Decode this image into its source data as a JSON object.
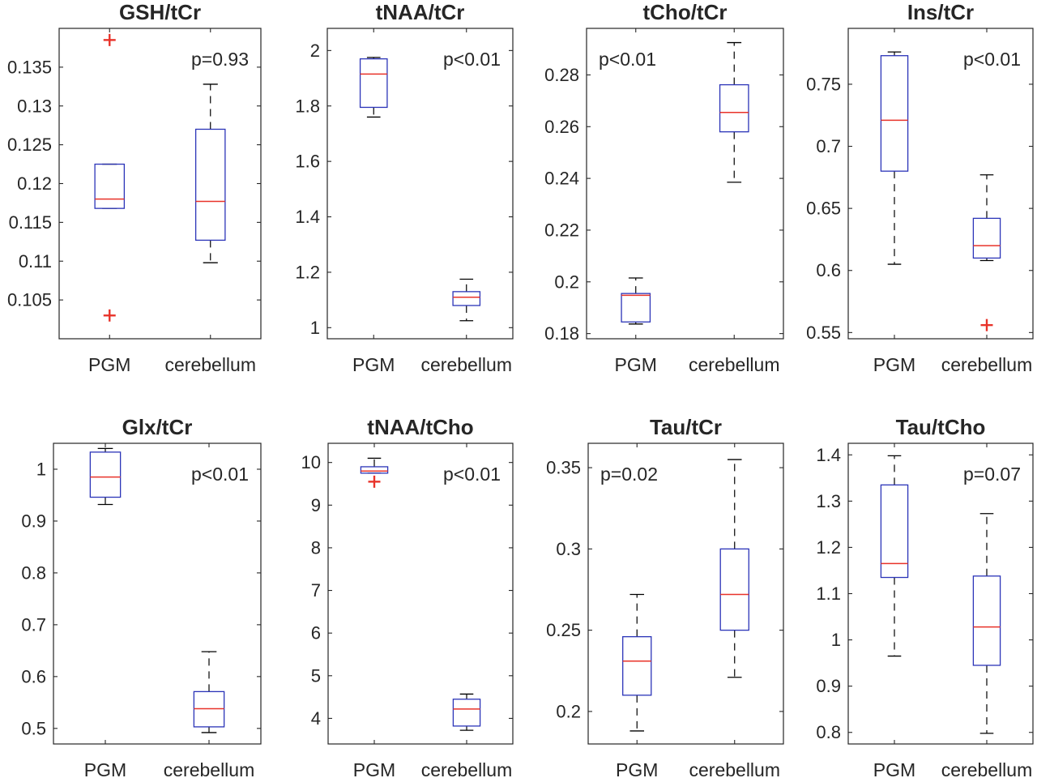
{
  "chart_data": [
    {
      "type": "box",
      "title": "GSH/tCr",
      "categories": [
        "PGM",
        "cerebellum"
      ],
      "ylim": [
        0.1,
        0.14
      ],
      "yticks": [
        "0.105",
        "0.11",
        "0.115",
        "0.12",
        "0.125",
        "0.13",
        "0.135"
      ],
      "yticks_values": [
        0.105,
        0.11,
        0.115,
        0.12,
        0.125,
        0.13,
        0.135
      ],
      "boxes": [
        {
          "category": "PGM",
          "whisker_low": 0.1168,
          "q1": 0.1168,
          "median": 0.118,
          "q3": 0.1225,
          "whisker_high": 0.1225,
          "outliers": [
            0.1385,
            0.103
          ]
        },
        {
          "category": "cerebellum",
          "whisker_low": 0.1098,
          "q1": 0.1127,
          "median": 0.1177,
          "q3": 0.127,
          "whisker_high": 0.1328,
          "outliers": []
        }
      ],
      "annotation": "p=0.93",
      "annotation_pos": "top-right"
    },
    {
      "type": "box",
      "title": "tNAA/tCr",
      "categories": [
        "PGM",
        "cerebellum"
      ],
      "ylim": [
        0.96,
        2.08
      ],
      "yticks": [
        "1",
        "1.2",
        "1.4",
        "1.6",
        "1.8",
        "2"
      ],
      "yticks_values": [
        1,
        1.2,
        1.4,
        1.6,
        1.8,
        2
      ],
      "boxes": [
        {
          "category": "PGM",
          "whisker_low": 1.76,
          "q1": 1.795,
          "median": 1.915,
          "q3": 1.97,
          "whisker_high": 1.975,
          "outliers": []
        },
        {
          "category": "cerebellum",
          "whisker_low": 1.025,
          "q1": 1.08,
          "median": 1.11,
          "q3": 1.13,
          "whisker_high": 1.175,
          "outliers": []
        }
      ],
      "annotation": "p<0.01",
      "annotation_pos": "top-right"
    },
    {
      "type": "box",
      "title": "tCho/tCr",
      "categories": [
        "PGM",
        "cerebellum"
      ],
      "ylim": [
        0.178,
        0.298
      ],
      "yticks": [
        "0.18",
        "0.2",
        "0.22",
        "0.24",
        "0.26",
        "0.28"
      ],
      "yticks_values": [
        0.18,
        0.2,
        0.22,
        0.24,
        0.26,
        0.28
      ],
      "boxes": [
        {
          "category": "PGM",
          "whisker_low": 0.1837,
          "q1": 0.1845,
          "median": 0.1948,
          "q3": 0.1955,
          "whisker_high": 0.2015,
          "outliers": []
        },
        {
          "category": "cerebellum",
          "whisker_low": 0.2385,
          "q1": 0.258,
          "median": 0.2655,
          "q3": 0.2762,
          "whisker_high": 0.2925,
          "outliers": []
        }
      ],
      "annotation": "p<0.01",
      "annotation_pos": "top-left"
    },
    {
      "type": "box",
      "title": "Ins/tCr",
      "categories": [
        "PGM",
        "cerebellum"
      ],
      "ylim": [
        0.545,
        0.795
      ],
      "yticks": [
        "0.55",
        "0.6",
        "0.65",
        "0.7",
        "0.75"
      ],
      "yticks_values": [
        0.55,
        0.6,
        0.65,
        0.7,
        0.75
      ],
      "boxes": [
        {
          "category": "PGM",
          "whisker_low": 0.605,
          "q1": 0.68,
          "median": 0.721,
          "q3": 0.773,
          "whisker_high": 0.776,
          "outliers": []
        },
        {
          "category": "cerebellum",
          "whisker_low": 0.608,
          "q1": 0.61,
          "median": 0.62,
          "q3": 0.642,
          "whisker_high": 0.677,
          "outliers": [
            0.556
          ]
        }
      ],
      "annotation": "p<0.01",
      "annotation_pos": "top-right"
    },
    {
      "type": "box",
      "title": "Glx/tCr",
      "categories": [
        "PGM",
        "cerebellum"
      ],
      "ylim": [
        0.47,
        1.05
      ],
      "yticks": [
        "0.5",
        "0.6",
        "0.7",
        "0.8",
        "0.9",
        "1"
      ],
      "yticks_values": [
        0.5,
        0.6,
        0.7,
        0.8,
        0.9,
        1
      ],
      "boxes": [
        {
          "category": "PGM",
          "whisker_low": 0.932,
          "q1": 0.946,
          "median": 0.985,
          "q3": 1.033,
          "whisker_high": 1.04,
          "outliers": []
        },
        {
          "category": "cerebellum",
          "whisker_low": 0.492,
          "q1": 0.503,
          "median": 0.538,
          "q3": 0.571,
          "whisker_high": 0.648,
          "outliers": []
        }
      ],
      "annotation": "p<0.01",
      "annotation_pos": "top-right"
    },
    {
      "type": "box",
      "title": "tNAA/tCho",
      "categories": [
        "PGM",
        "cerebellum"
      ],
      "ylim": [
        3.4,
        10.45
      ],
      "yticks": [
        "4",
        "5",
        "6",
        "7",
        "8",
        "9",
        "10"
      ],
      "yticks_values": [
        4,
        5,
        6,
        7,
        8,
        9,
        10
      ],
      "boxes": [
        {
          "category": "PGM",
          "whisker_low": 9.75,
          "q1": 9.75,
          "median": 9.8,
          "q3": 9.9,
          "whisker_high": 10.1,
          "outliers": [
            9.55
          ]
        },
        {
          "category": "cerebellum",
          "whisker_low": 3.72,
          "q1": 3.82,
          "median": 4.22,
          "q3": 4.45,
          "whisker_high": 4.57,
          "outliers": []
        }
      ],
      "annotation": "p<0.01",
      "annotation_pos": "top-right"
    },
    {
      "type": "box",
      "title": "Tau/tCr",
      "categories": [
        "PGM",
        "cerebellum"
      ],
      "ylim": [
        0.18,
        0.365
      ],
      "yticks": [
        "0.2",
        "0.25",
        "0.3",
        "0.35"
      ],
      "yticks_values": [
        0.2,
        0.25,
        0.3,
        0.35
      ],
      "boxes": [
        {
          "category": "PGM",
          "whisker_low": 0.188,
          "q1": 0.21,
          "median": 0.231,
          "q3": 0.246,
          "whisker_high": 0.272,
          "outliers": []
        },
        {
          "category": "cerebellum",
          "whisker_low": 0.221,
          "q1": 0.25,
          "median": 0.272,
          "q3": 0.3,
          "whisker_high": 0.355,
          "outliers": []
        }
      ],
      "annotation": "p=0.02",
      "annotation_pos": "top-left"
    },
    {
      "type": "box",
      "title": "Tau/tCho",
      "categories": [
        "PGM",
        "cerebellum"
      ],
      "ylim": [
        0.775,
        1.425
      ],
      "yticks": [
        "0.8",
        "0.9",
        "1",
        "1.1",
        "1.2",
        "1.3",
        "1.4"
      ],
      "yticks_values": [
        0.8,
        0.9,
        1,
        1.1,
        1.2,
        1.3,
        1.4
      ],
      "boxes": [
        {
          "category": "PGM",
          "whisker_low": 0.965,
          "q1": 1.135,
          "median": 1.165,
          "q3": 1.335,
          "whisker_high": 1.398,
          "outliers": []
        },
        {
          "category": "cerebellum",
          "whisker_low": 0.798,
          "q1": 0.945,
          "median": 1.028,
          "q3": 1.138,
          "whisker_high": 1.273,
          "outliers": []
        }
      ],
      "annotation": "p=0.07",
      "annotation_pos": "top-right"
    }
  ]
}
